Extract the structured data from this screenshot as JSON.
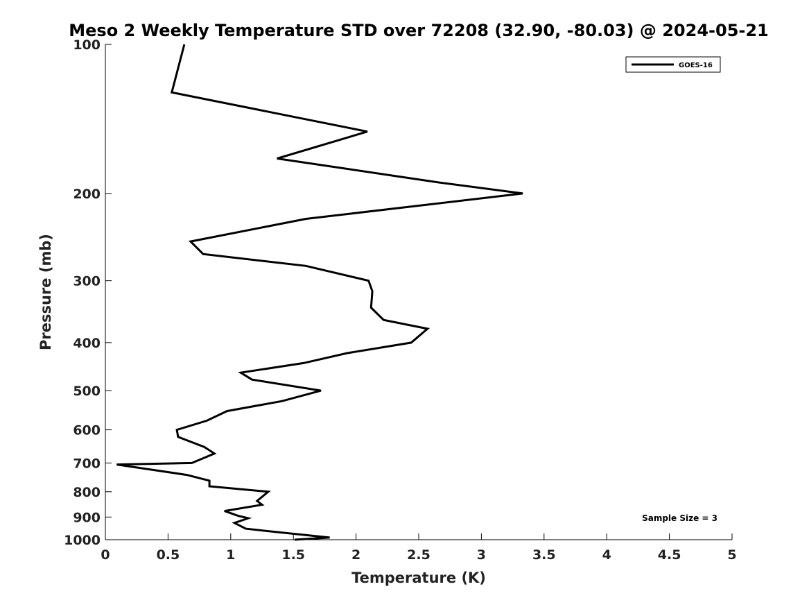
{
  "chart_data": {
    "type": "line",
    "title": "Meso 2 Weekly Temperature STD over 72208 (32.90, -80.03) @ 2024-05-21",
    "xlabel": "Temperature (K)",
    "ylabel": "Pressure (mb)",
    "xlim": [
      0,
      5
    ],
    "ylim": [
      100,
      1000
    ],
    "y_scale": "log",
    "y_reversed": true,
    "x_ticks": [
      "0",
      "0.5",
      "1",
      "1.5",
      "2",
      "2.5",
      "3",
      "3.5",
      "4",
      "4.5",
      "5"
    ],
    "y_ticks": [
      "100",
      "200",
      "300",
      "400",
      "500",
      "600",
      "700",
      "800",
      "900",
      "1000"
    ],
    "grid": false,
    "legend_position": "top-right",
    "annotation": "Sample Size = 3",
    "series": [
      {
        "name": "GOES-16",
        "color": "#000000",
        "points": [
          [
            0.63,
            100
          ],
          [
            0.53,
            125
          ],
          [
            2.09,
            150
          ],
          [
            1.37,
            170
          ],
          [
            2.66,
            190
          ],
          [
            3.33,
            200
          ],
          [
            1.6,
            225
          ],
          [
            0.68,
            250
          ],
          [
            0.78,
            265
          ],
          [
            1.6,
            280
          ],
          [
            2.1,
            300
          ],
          [
            2.13,
            315
          ],
          [
            2.12,
            340
          ],
          [
            2.22,
            360
          ],
          [
            2.57,
            375
          ],
          [
            2.44,
            400
          ],
          [
            1.93,
            420
          ],
          [
            1.58,
            440
          ],
          [
            1.08,
            460
          ],
          [
            1.17,
            475
          ],
          [
            1.72,
            500
          ],
          [
            1.41,
            525
          ],
          [
            0.97,
            550
          ],
          [
            0.81,
            575
          ],
          [
            0.57,
            600
          ],
          [
            0.58,
            620
          ],
          [
            0.79,
            650
          ],
          [
            0.87,
            670
          ],
          [
            0.69,
            700
          ],
          [
            0.09,
            705
          ],
          [
            0.65,
            740
          ],
          [
            0.83,
            760
          ],
          [
            0.83,
            780
          ],
          [
            1.3,
            800
          ],
          [
            1.21,
            835
          ],
          [
            1.25,
            850
          ],
          [
            0.95,
            875
          ],
          [
            1.06,
            895
          ],
          [
            1.14,
            905
          ],
          [
            1.03,
            925
          ],
          [
            1.12,
            950
          ],
          [
            1.37,
            965
          ],
          [
            1.79,
            990
          ],
          [
            1.51,
            1000
          ]
        ]
      }
    ]
  }
}
